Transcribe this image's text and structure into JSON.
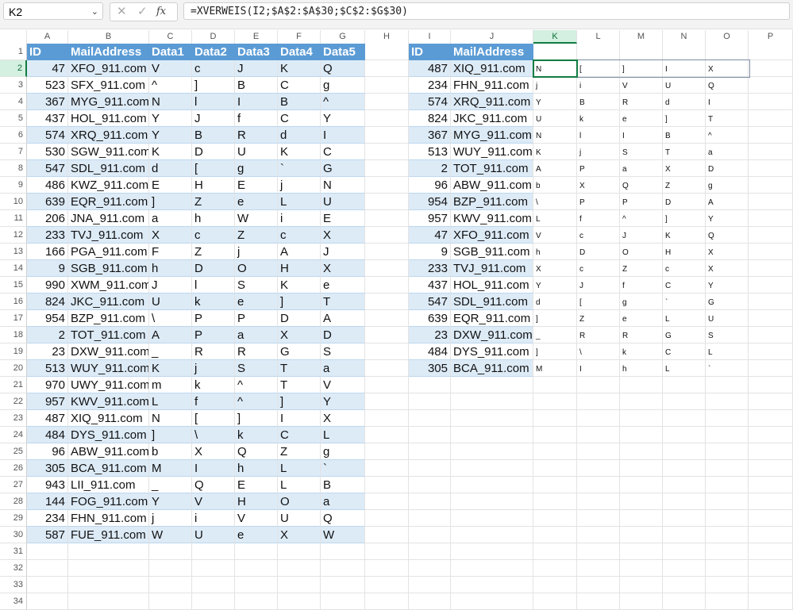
{
  "name_box": "K2",
  "formula": "=XVERWEIS(I2;$A$2:$A$30;$C$2:$G$30)",
  "icons": {
    "cancel": "✕",
    "enter": "✓",
    "fx": "fx"
  },
  "colors": {
    "header": "#5b9bd5",
    "band": "#ddebf7",
    "selection": "#107c41"
  },
  "columns": [
    "A",
    "B",
    "C",
    "D",
    "E",
    "F",
    "G",
    "H",
    "I",
    "J",
    "K",
    "L",
    "M",
    "N",
    "O",
    "P"
  ],
  "row_numbers": [
    "1",
    "2",
    "3",
    "4",
    "5",
    "6",
    "7",
    "8",
    "9",
    "10",
    "11",
    "12",
    "13",
    "14",
    "15",
    "16",
    "17",
    "18",
    "19",
    "20",
    "21",
    "22",
    "23",
    "24",
    "25",
    "26",
    "27",
    "28",
    "29",
    "30",
    "31",
    "32",
    "33",
    "34"
  ],
  "left_table": {
    "headers": [
      "ID",
      "MailAddress",
      "Data1",
      "Data2",
      "Data3",
      "Data4",
      "Data5"
    ],
    "rows": [
      [
        "47",
        "XFO_911.com",
        "V",
        "c",
        "J",
        "K",
        "Q"
      ],
      [
        "523",
        "SFX_911.com",
        "^",
        "]",
        "B",
        "C",
        "g"
      ],
      [
        "367",
        "MYG_911.com",
        "N",
        "l",
        "I",
        "B",
        "^"
      ],
      [
        "437",
        "HOL_911.com",
        "Y",
        "J",
        "f",
        "C",
        "Y"
      ],
      [
        "574",
        "XRQ_911.com",
        "Y",
        "B",
        "R",
        "d",
        "I"
      ],
      [
        "530",
        "SGW_911.com",
        "K",
        "D",
        "U",
        "K",
        "C"
      ],
      [
        "547",
        "SDL_911.com",
        "d",
        "[",
        "g",
        "`",
        "G"
      ],
      [
        "486",
        "KWZ_911.com",
        "E",
        "H",
        "E",
        "j",
        "N"
      ],
      [
        "639",
        "EQR_911.com",
        "]",
        "Z",
        "e",
        "L",
        "U"
      ],
      [
        "206",
        "JNA_911.com",
        "a",
        "h",
        "W",
        "i",
        "E"
      ],
      [
        "233",
        "TVJ_911.com",
        "X",
        "c",
        "Z",
        "c",
        "X"
      ],
      [
        "166",
        "PGA_911.com",
        "F",
        "Z",
        "j",
        "A",
        "J"
      ],
      [
        "9",
        "SGB_911.com",
        "h",
        "D",
        "O",
        "H",
        "X"
      ],
      [
        "990",
        "XWM_911.com",
        "J",
        "l",
        "S",
        "K",
        "e"
      ],
      [
        "824",
        "JKC_911.com",
        "U",
        "k",
        "e",
        "]",
        "T"
      ],
      [
        "954",
        "BZP_911.com",
        "\\",
        "P",
        "P",
        "D",
        "A"
      ],
      [
        "2",
        "TOT_911.com",
        "A",
        "P",
        "a",
        "X",
        "D"
      ],
      [
        "23",
        "DXW_911.com",
        "_",
        "R",
        "R",
        "G",
        "S"
      ],
      [
        "513",
        "WUY_911.com",
        "K",
        "j",
        "S",
        "T",
        "a"
      ],
      [
        "970",
        "UWY_911.com",
        "m",
        "k",
        "^",
        "T",
        "V"
      ],
      [
        "957",
        "KWV_911.com",
        "L",
        "f",
        "^",
        "]",
        "Y"
      ],
      [
        "487",
        "XIQ_911.com",
        "N",
        "[",
        "]",
        "I",
        "X"
      ],
      [
        "484",
        "DYS_911.com",
        "]",
        "\\",
        "k",
        "C",
        "L"
      ],
      [
        "96",
        "ABW_911.com",
        "b",
        "X",
        "Q",
        "Z",
        "g"
      ],
      [
        "305",
        "BCA_911.com",
        "M",
        "I",
        "h",
        "L",
        "`"
      ],
      [
        "943",
        "LII_911.com",
        "_",
        "Q",
        "E",
        "L",
        "B"
      ],
      [
        "144",
        "FOG_911.com",
        "Y",
        "V",
        "H",
        "O",
        "a"
      ],
      [
        "234",
        "FHN_911.com",
        "j",
        "i",
        "V",
        "U",
        "Q"
      ],
      [
        "587",
        "FUE_911.com",
        "W",
        "U",
        "e",
        "X",
        "W"
      ]
    ]
  },
  "right_table": {
    "headers": [
      "ID",
      "MailAddress"
    ],
    "rows": [
      [
        "487",
        "XIQ_911.com",
        "N",
        "[",
        "]",
        "I",
        "X"
      ],
      [
        "234",
        "FHN_911.com",
        "j",
        "i",
        "V",
        "U",
        "Q"
      ],
      [
        "574",
        "XRQ_911.com",
        "Y",
        "B",
        "R",
        "d",
        "I"
      ],
      [
        "824",
        "JKC_911.com",
        "U",
        "k",
        "e",
        "]",
        "T"
      ],
      [
        "367",
        "MYG_911.com",
        "N",
        "l",
        "I",
        "B",
        "^"
      ],
      [
        "513",
        "WUY_911.com",
        "K",
        "j",
        "S",
        "T",
        "a"
      ],
      [
        "2",
        "TOT_911.com",
        "A",
        "P",
        "a",
        "X",
        "D"
      ],
      [
        "96",
        "ABW_911.com",
        "b",
        "X",
        "Q",
        "Z",
        "g"
      ],
      [
        "954",
        "BZP_911.com",
        "\\",
        "P",
        "P",
        "D",
        "A"
      ],
      [
        "957",
        "KWV_911.com",
        "L",
        "f",
        "^",
        "]",
        "Y"
      ],
      [
        "47",
        "XFO_911.com",
        "V",
        "c",
        "J",
        "K",
        "Q"
      ],
      [
        "9",
        "SGB_911.com",
        "h",
        "D",
        "O",
        "H",
        "X"
      ],
      [
        "233",
        "TVJ_911.com",
        "X",
        "c",
        "Z",
        "c",
        "X"
      ],
      [
        "437",
        "HOL_911.com",
        "Y",
        "J",
        "f",
        "C",
        "Y"
      ],
      [
        "547",
        "SDL_911.com",
        "d",
        "[",
        "g",
        "`",
        "G"
      ],
      [
        "639",
        "EQR_911.com",
        "]",
        "Z",
        "e",
        "L",
        "U"
      ],
      [
        "23",
        "DXW_911.com",
        "_",
        "R",
        "R",
        "G",
        "S"
      ],
      [
        "484",
        "DYS_911.com",
        "]",
        "\\",
        "k",
        "C",
        "L"
      ],
      [
        "305",
        "BCA_911.com",
        "M",
        "I",
        "h",
        "L",
        "`"
      ]
    ]
  }
}
